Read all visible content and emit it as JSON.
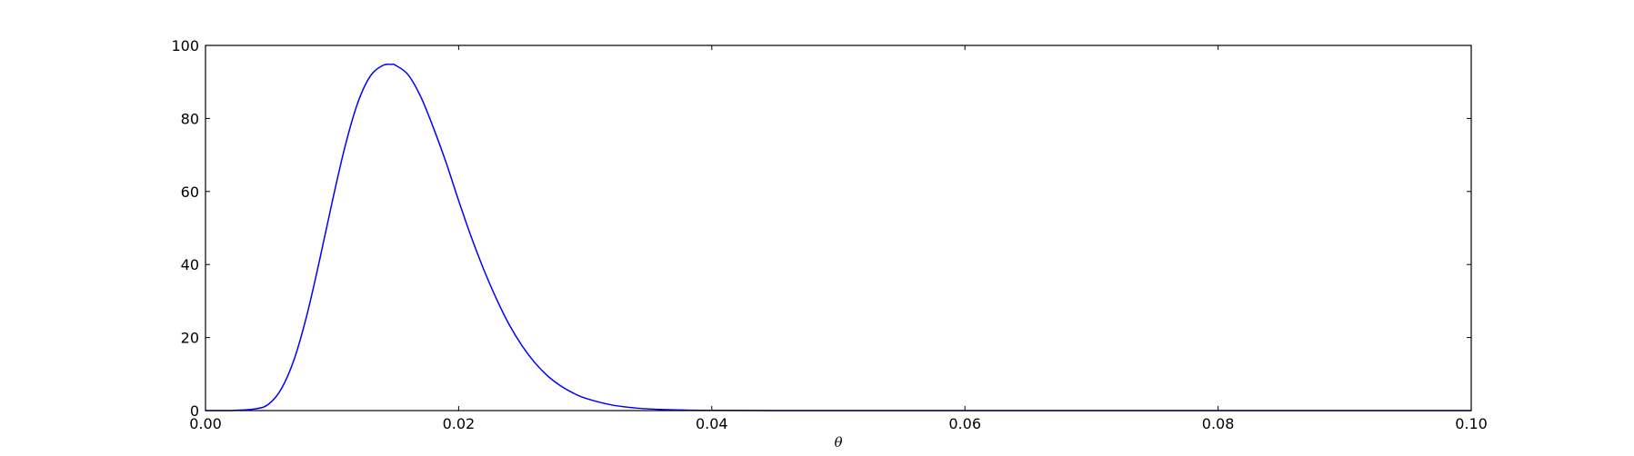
{
  "chart_data": {
    "type": "line",
    "title": "",
    "xlabel": "θ",
    "ylabel": "",
    "xlim": [
      0.0,
      0.1
    ],
    "ylim": [
      0,
      100
    ],
    "grid": false,
    "x_ticks": [
      "0.00",
      "0.02",
      "0.04",
      "0.06",
      "0.08",
      "0.10"
    ],
    "y_ticks": [
      "0",
      "20",
      "40",
      "60",
      "80",
      "100"
    ],
    "series": [
      {
        "color": "#0000ff",
        "x": [
          0.0,
          0.002,
          0.004,
          0.005,
          0.006,
          0.007,
          0.008,
          0.009,
          0.01,
          0.011,
          0.012,
          0.013,
          0.014,
          0.0147,
          0.015,
          0.016,
          0.017,
          0.018,
          0.019,
          0.02,
          0.021,
          0.022,
          0.023,
          0.024,
          0.025,
          0.026,
          0.027,
          0.028,
          0.029,
          0.03,
          0.032,
          0.034,
          0.036,
          0.038,
          0.04,
          0.045,
          0.05,
          0.06,
          0.07,
          0.08,
          0.09,
          0.1
        ],
        "y": [
          0,
          0.01,
          0.5,
          1.8,
          6.0,
          14.0,
          26.0,
          41.0,
          57.0,
          72.0,
          84.0,
          91.5,
          94.5,
          94.8,
          94.6,
          92.0,
          86.0,
          77.5,
          68.0,
          57.5,
          47.5,
          38.5,
          30.5,
          23.5,
          17.8,
          13.2,
          9.6,
          6.9,
          4.9,
          3.4,
          1.6,
          0.7,
          0.3,
          0.12,
          0.05,
          0.01,
          0,
          0,
          0,
          0,
          0,
          0
        ]
      }
    ]
  }
}
